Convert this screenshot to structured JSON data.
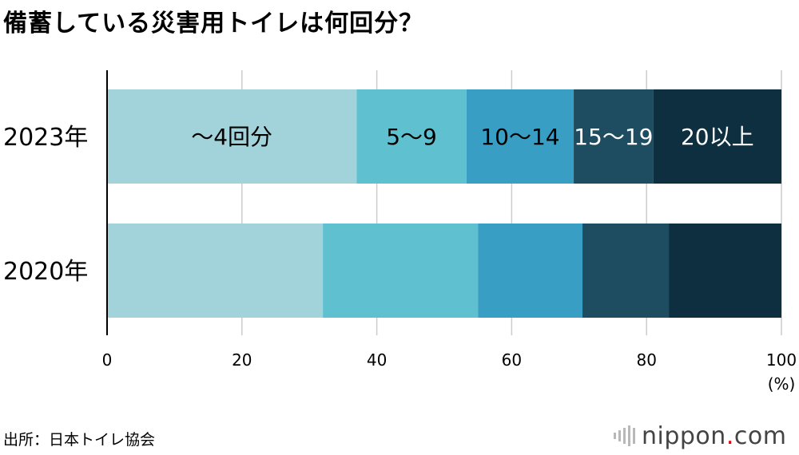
{
  "title": "備蓄している災害用トイレは何回分？",
  "source": "出所：日本トイレ協会",
  "logo": {
    "name": "nippon",
    "dot": ".",
    "tld": "com"
  },
  "chart_data": {
    "type": "bar",
    "orientation": "horizontal",
    "stacked": true,
    "categories": [
      "2023年",
      "2020年"
    ],
    "series": [
      {
        "name": "～4回分",
        "values": [
          37,
          32
        ],
        "color": "#a2d3da"
      },
      {
        "name": "5～9",
        "values": [
          16.3,
          23
        ],
        "color": "#5fc1cf"
      },
      {
        "name": "10～14",
        "values": [
          15.9,
          15.5
        ],
        "color": "#389ec4"
      },
      {
        "name": "15～19",
        "values": [
          11.8,
          12.8
        ],
        "color": "#1e4d61"
      },
      {
        "name": "20以上",
        "values": [
          19,
          16.7
        ],
        "color": "#0d2f40"
      }
    ],
    "segment_labels": {
      "category": "2023年",
      "text_colors": [
        "#000000",
        "#000000",
        "#000000",
        "#ffffff",
        "#ffffff"
      ]
    },
    "xlim": [
      0,
      100
    ],
    "xticks": [
      0,
      20,
      40,
      60,
      80,
      100
    ],
    "xunit": "(%)",
    "grid": true,
    "grid_color": "#cccccc"
  }
}
